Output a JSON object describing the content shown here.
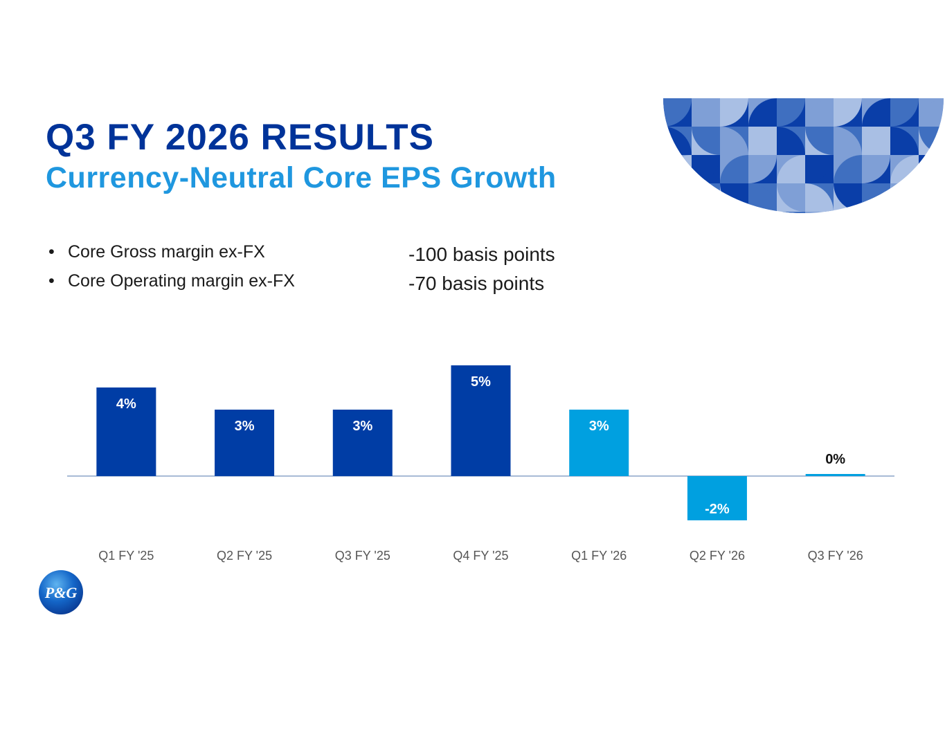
{
  "slide": {
    "title": "Q3 FY 2026 RESULTS",
    "subtitle": "Currency-Neutral Core EPS Growth"
  },
  "bullets": [
    {
      "label": "Core Gross margin ex-FX",
      "value": "-100 basis points"
    },
    {
      "label": "Core Operating margin ex-FX",
      "value": "-70 basis points"
    }
  ],
  "bullet_glyph": "•",
  "logo": {
    "text": "P&G"
  },
  "colors": {
    "title": "#003399",
    "subtitle": "#1f97df",
    "bar_dark": "#003da5",
    "bar_light": "#00a0e0",
    "axis": "#8aa4c8",
    "tick_label": "#555555"
  },
  "chart_data": {
    "type": "bar",
    "title": "Currency-Neutral Core EPS Growth",
    "categories": [
      "Q1 FY '25",
      "Q2 FY '25",
      "Q3 FY '25",
      "Q4 FY '25",
      "Q1 FY '26",
      "Q2 FY '26",
      "Q3 FY '26"
    ],
    "values": [
      4,
      3,
      3,
      5,
      3,
      -2,
      0
    ],
    "labels": [
      "4%",
      "3%",
      "3%",
      "5%",
      "3%",
      "-2%",
      "0%"
    ],
    "unit": "%",
    "highlight_from_index": 4,
    "xlabel": "",
    "ylabel": "",
    "grid": false
  }
}
